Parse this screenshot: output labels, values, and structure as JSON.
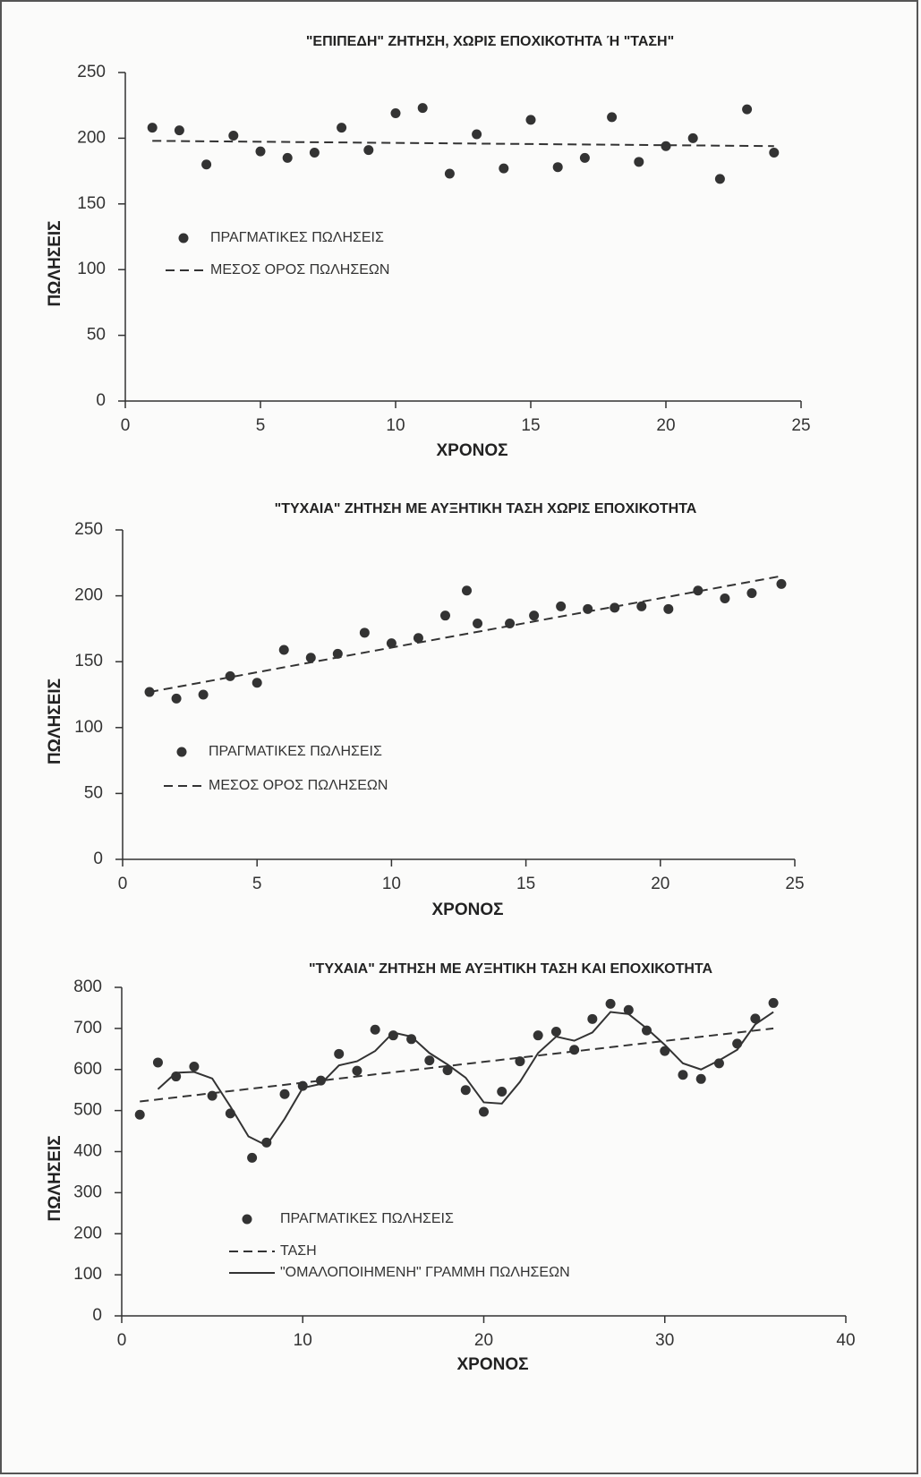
{
  "chart_data": [
    {
      "type": "line",
      "title": "\"ΕΠΙΠΕΔΗ\" ΖΗΤΗΣΗ, ΧΩΡΙΣ ΕΠΟΧΙΚΟΤΗΤΑ Ή \"ΤΑΣΗ\"",
      "xlabel": "ΧΡΟΝΟΣ",
      "ylabel": "ΠΩΛΗΣΕΙΣ",
      "xlim": [
        0,
        25
      ],
      "xticks": [
        0,
        5,
        10,
        15,
        20,
        25
      ],
      "ylim": [
        0,
        250
      ],
      "yticks": [
        0,
        50,
        100,
        150,
        200,
        250
      ],
      "series": [
        {
          "name": "ΠΡΑΓΜΑΤΙΚΕΣ ΠΩΛΗΣΕΙΣ",
          "style": "markers",
          "color": "#333333",
          "x": [
            1,
            2,
            3,
            4,
            5,
            6,
            7,
            8,
            9,
            10,
            11,
            12,
            13,
            14,
            15,
            16,
            17,
            18,
            19,
            20,
            21,
            22,
            23,
            24
          ],
          "values": [
            208,
            206,
            180,
            202,
            190,
            185,
            189,
            208,
            191,
            219,
            223,
            173,
            203,
            177,
            214,
            178,
            185,
            216,
            182,
            194,
            200,
            169,
            222,
            189
          ]
        },
        {
          "name": "ΜΕΣΟΣ ΟΡΟΣ ΠΩΛΗΣΕΩΝ",
          "style": "dashed",
          "color": "#333333",
          "x": [
            1,
            24
          ],
          "values": [
            198,
            194
          ]
        }
      ]
    },
    {
      "type": "line",
      "title": "\"ΤΥΧΑΙΑ\" ΖΗΤΗΣΗ ΜΕ ΑΥΞΗΤΙΚΗ ΤΑΣΗ ΧΩΡΙΣ ΕΠΟΧΙΚΟΤΗΤΑ",
      "xlabel": "ΧΡΟΝΟΣ",
      "ylabel": "ΠΩΛΗΣΕΙΣ",
      "xlim": [
        0,
        25
      ],
      "xticks": [
        0,
        5,
        10,
        15,
        20,
        25
      ],
      "ylim": [
        0,
        250
      ],
      "yticks": [
        0,
        50,
        100,
        150,
        200,
        250
      ],
      "series": [
        {
          "name": "ΠΡΑΓΜΑΤΙΚΕΣ ΠΩΛΗΣΕΙΣ",
          "style": "markers",
          "color": "#333333",
          "x": [
            1,
            2,
            3,
            4,
            5,
            6,
            7,
            8,
            9,
            10,
            11,
            12,
            12.8,
            13.2,
            14.4,
            15.3,
            16.3,
            17.3,
            18.3,
            19.3,
            20.3,
            21.4,
            22.4,
            23.4,
            24.5
          ],
          "values": [
            127,
            122,
            125,
            139,
            134,
            159,
            153,
            156,
            172,
            164,
            168,
            185,
            204,
            179,
            179,
            185,
            192,
            190,
            191,
            192,
            190,
            204,
            198,
            202,
            209
          ]
        },
        {
          "name": "ΜΕΣΟΣ ΟΡΟΣ ΠΩΛΗΣΕΩΝ",
          "style": "dashed",
          "color": "#333333",
          "x": [
            1,
            24.5
          ],
          "values": [
            127,
            215
          ]
        }
      ]
    },
    {
      "type": "line",
      "title": "\"ΤΥΧΑΙΑ\" ΖΗΤΗΣΗ ΜΕ ΑΥΞΗΤΙΚΗ ΤΑΣΗ ΚΑΙ ΕΠΟΧΙΚΟΤΗΤΑ",
      "xlabel": "ΧΡΟΝΟΣ",
      "ylabel": "ΠΩΛΗΣΕΙΣ",
      "xlim": [
        0,
        40
      ],
      "xticks": [
        0,
        10,
        20,
        30,
        40
      ],
      "ylim": [
        0,
        800
      ],
      "yticks": [
        0,
        100,
        200,
        300,
        400,
        500,
        600,
        700,
        800
      ],
      "series": [
        {
          "name": "ΠΡΑΓΜΑΤΙΚΕΣ ΠΩΛΗΣΕΙΣ",
          "style": "markers",
          "color": "#333333",
          "x": [
            1,
            2,
            3,
            4,
            5,
            6,
            7.2,
            8,
            9,
            10,
            11,
            12,
            13,
            14,
            15,
            16,
            17,
            18,
            19,
            20,
            21,
            22,
            23,
            24,
            25,
            26,
            27,
            28,
            29,
            30,
            31,
            32,
            33,
            34,
            35,
            36
          ],
          "values": [
            490,
            617,
            583,
            607,
            536,
            493,
            385,
            422,
            540,
            560,
            573,
            638,
            597,
            697,
            683,
            674,
            622,
            598,
            550,
            497,
            546,
            620,
            683,
            692,
            648,
            723,
            760,
            745,
            695,
            645,
            587,
            577,
            615,
            663,
            724,
            762
          ]
        },
        {
          "name": "ΤΑΣΗ",
          "style": "dashed",
          "color": "#333333",
          "x": [
            1,
            36
          ],
          "values": [
            522,
            700
          ]
        },
        {
          "name": "\"ΟΜΑΛΟΠΟΙΗΜΕΝΗ\" ΓΡΑΜΜΗ ΠΩΛΗΣΕΩΝ",
          "style": "solid",
          "color": "#333333",
          "x": [
            2,
            3,
            4,
            5,
            6,
            7,
            8,
            9,
            10,
            11,
            12,
            13,
            14,
            15,
            16,
            17,
            18,
            19,
            20,
            21,
            22,
            23,
            24,
            25,
            26,
            27,
            28,
            29,
            30,
            31,
            32,
            33,
            34,
            35,
            36
          ],
          "values": [
            552,
            592,
            594,
            578,
            510,
            437,
            415,
            480,
            555,
            565,
            610,
            620,
            645,
            690,
            680,
            640,
            612,
            580,
            520,
            517,
            570,
            640,
            680,
            670,
            690,
            740,
            735,
            700,
            660,
            615,
            600,
            622,
            648,
            710,
            740
          ]
        }
      ]
    }
  ]
}
